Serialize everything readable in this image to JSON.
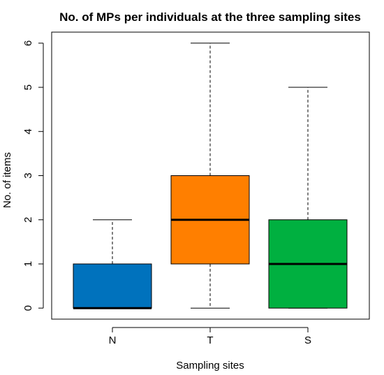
{
  "chart_data": {
    "type": "boxplot",
    "title": "No. of MPs per individuals at the three sampling sites",
    "xlabel": "Sampling sites",
    "ylabel": "No. of items",
    "categories": [
      "N",
      "T",
      "S"
    ],
    "yticks": [
      "0",
      "1",
      "2",
      "3",
      "4",
      "5",
      "6"
    ],
    "ylim": [
      -0.25,
      6.25
    ],
    "grid": false,
    "series": [
      {
        "category": "N",
        "min": 0,
        "q1": 0,
        "median": 0,
        "q3": 1,
        "max": 2,
        "color": "#0072bd"
      },
      {
        "category": "T",
        "min": 0,
        "q1": 1,
        "median": 2,
        "q3": 3,
        "max": 6,
        "color": "#ff7f00"
      },
      {
        "category": "S",
        "min": 0,
        "q1": 0,
        "median": 1,
        "q3": 2,
        "max": 5,
        "color": "#00b040"
      }
    ]
  }
}
